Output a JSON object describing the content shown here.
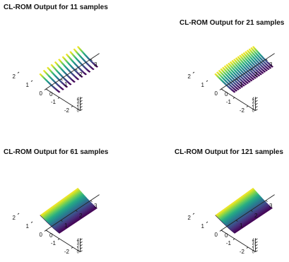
{
  "chart_data": [
    {
      "type": "surface",
      "title": "CL-ROM Output for 11 samples",
      "samples": 11,
      "x_ticks": [
        "-2",
        "-1",
        "0",
        "1",
        "2"
      ],
      "y_ticks": [
        "0",
        "1",
        "2",
        "3"
      ],
      "z_ticks": [
        "0",
        "1",
        "2",
        "3",
        "4"
      ],
      "colormap": "viridis",
      "grid": false
    },
    {
      "type": "surface",
      "title": "CL-ROM Output for 21 samples",
      "samples": 21,
      "x_ticks": [
        "-2",
        "-1",
        "0",
        "1",
        "2"
      ],
      "y_ticks": [
        "0",
        "1",
        "2",
        "3"
      ],
      "z_ticks": [
        "0",
        "1",
        "2",
        "3",
        "4"
      ],
      "colormap": "viridis",
      "grid": false
    },
    {
      "type": "surface",
      "title": "CL-ROM Output for 61 samples",
      "samples": 61,
      "x_ticks": [
        "-2",
        "-1",
        "0",
        "1",
        "2"
      ],
      "y_ticks": [
        "0",
        "1",
        "2",
        "3"
      ],
      "z_ticks": [
        "0",
        "1",
        "2",
        "3",
        "4"
      ],
      "colormap": "viridis",
      "grid": false
    },
    {
      "type": "surface",
      "title": "CL-ROM Output for 121 samples",
      "samples": 121,
      "x_ticks": [
        "-2",
        "-1",
        "0",
        "1",
        "2"
      ],
      "y_ticks": [
        "0",
        "1",
        "2",
        "3"
      ],
      "z_ticks": [
        "0",
        "1",
        "2",
        "3",
        "4"
      ],
      "colormap": "viridis",
      "grid": false
    }
  ]
}
